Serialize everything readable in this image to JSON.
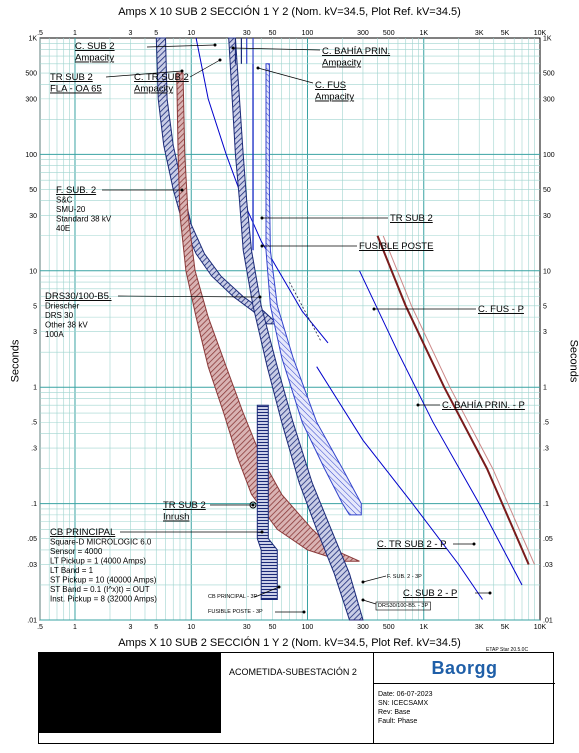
{
  "chart_data": {
    "type": "line",
    "title": "Amps  X  10   SUB 2 SECCIÓN 1 Y 2 (Nom. kV=34.5, Plot Ref. kV=34.5)",
    "xlabel": "",
    "ylabel": "Seconds",
    "xscale": "log",
    "yscale": "log",
    "xlim": [
      0.5,
      10000
    ],
    "ylim": [
      0.01,
      1000
    ],
    "grid": true,
    "x_ticks": [
      {
        "v": 0.5,
        "label": ".5"
      },
      {
        "v": 1,
        "label": "1"
      },
      {
        "v": 3,
        "label": "3"
      },
      {
        "v": 5,
        "label": "5"
      },
      {
        "v": 10,
        "label": "10"
      },
      {
        "v": 30,
        "label": "30"
      },
      {
        "v": 50,
        "label": "50"
      },
      {
        "v": 100,
        "label": "100"
      },
      {
        "v": 300,
        "label": "300"
      },
      {
        "v": 500,
        "label": "500"
      },
      {
        "v": 1000,
        "label": "1K"
      },
      {
        "v": 3000,
        "label": "3K"
      },
      {
        "v": 5000,
        "label": "5K"
      },
      {
        "v": 10000,
        "label": "10K"
      }
    ],
    "y_ticks": [
      {
        "v": 1000,
        "label": "1K"
      },
      {
        "v": 500,
        "label": "500"
      },
      {
        "v": 300,
        "label": "300"
      },
      {
        "v": 100,
        "label": "100"
      },
      {
        "v": 50,
        "label": "50"
      },
      {
        "v": 30,
        "label": "30"
      },
      {
        "v": 10,
        "label": "10"
      },
      {
        "v": 5,
        "label": "5"
      },
      {
        "v": 3,
        "label": "3"
      },
      {
        "v": 1,
        "label": "1"
      },
      {
        "v": 0.5,
        "label": ".5"
      },
      {
        "v": 0.3,
        "label": ".3"
      },
      {
        "v": 0.1,
        "label": ".1"
      },
      {
        "v": 0.05,
        "label": ".05"
      },
      {
        "v": 0.03,
        "label": ".03"
      },
      {
        "v": 0.01,
        "label": ".01"
      }
    ],
    "series": [
      {
        "name": "F. SUB. 2",
        "kind": "band",
        "color": "#1b2a78",
        "upper": [
          [
            6,
            1000
          ],
          [
            6.2,
            300
          ],
          [
            7,
            120
          ],
          [
            8.5,
            50
          ],
          [
            10,
            25
          ],
          [
            13,
            14
          ],
          [
            18,
            9
          ],
          [
            28,
            6
          ],
          [
            42,
            4.5
          ],
          [
            55,
            3.5
          ]
        ],
        "lower": [
          [
            5,
            1000
          ],
          [
            5.2,
            300
          ],
          [
            5.8,
            120
          ],
          [
            7,
            50
          ],
          [
            8.5,
            25
          ],
          [
            11,
            14
          ],
          [
            15,
            9
          ],
          [
            23,
            6
          ],
          [
            34,
            4.5
          ],
          [
            45,
            3.5
          ]
        ]
      },
      {
        "name": "DRS30/100-B5.",
        "kind": "band",
        "color": "#8b3a3a",
        "upper": [
          [
            8.5,
            500
          ],
          [
            8.8,
            100
          ],
          [
            9.4,
            30
          ],
          [
            10.8,
            10
          ],
          [
            14,
            4
          ],
          [
            20,
            1.5
          ],
          [
            28,
            0.6
          ],
          [
            40,
            0.25
          ],
          [
            60,
            0.12
          ],
          [
            110,
            0.06
          ],
          [
            170,
            0.04
          ],
          [
            280,
            0.032
          ]
        ],
        "lower": [
          [
            7.5,
            500
          ],
          [
            7.7,
            100
          ],
          [
            8,
            30
          ],
          [
            9,
            10
          ],
          [
            11,
            4
          ],
          [
            14,
            1.5
          ],
          [
            19,
            0.6
          ],
          [
            25,
            0.25
          ],
          [
            33,
            0.12
          ],
          [
            55,
            0.06
          ],
          [
            100,
            0.04
          ],
          [
            200,
            0.032
          ]
        ]
      },
      {
        "name": "TR SUB 2",
        "kind": "line",
        "color": "#0000cc",
        "points": [
          [
            11,
            1000
          ],
          [
            14,
            300
          ],
          [
            20,
            100
          ],
          [
            28,
            40
          ],
          [
            40,
            18
          ],
          [
            60,
            9
          ],
          [
            90,
            4.5
          ],
          [
            150,
            2.4
          ]
        ]
      },
      {
        "name": "C. SUB 2",
        "kind": "band",
        "color": "#1b2a78",
        "upper": [
          [
            24,
            1000
          ],
          [
            26,
            300
          ],
          [
            28,
            100
          ],
          [
            30,
            40
          ],
          [
            33,
            15
          ],
          [
            40,
            5
          ],
          [
            55,
            1.5
          ],
          [
            75,
            0.5
          ],
          [
            110,
            0.15
          ],
          [
            160,
            0.06
          ],
          [
            230,
            0.025
          ],
          [
            300,
            0.01
          ]
        ],
        "lower": [
          [
            21,
            1000
          ],
          [
            22.5,
            300
          ],
          [
            24,
            100
          ],
          [
            26,
            40
          ],
          [
            28,
            15
          ],
          [
            34,
            5
          ],
          [
            45,
            1.5
          ],
          [
            60,
            0.5
          ],
          [
            85,
            0.15
          ],
          [
            120,
            0.06
          ],
          [
            170,
            0.025
          ],
          [
            230,
            0.01
          ]
        ]
      },
      {
        "name": "FUSIBLE POSTE",
        "kind": "band",
        "color": "#3344cc",
        "upper": [
          [
            47,
            600
          ],
          [
            47,
            50
          ],
          [
            48,
            15
          ],
          [
            55,
            5
          ],
          [
            75,
            1.8
          ],
          [
            120,
            0.5
          ],
          [
            200,
            0.2
          ],
          [
            290,
            0.1
          ],
          [
            290,
            0.08
          ]
        ],
        "lower": [
          [
            44,
            600
          ],
          [
            44,
            50
          ],
          [
            44,
            15
          ],
          [
            48,
            5
          ],
          [
            60,
            1.8
          ],
          [
            90,
            0.5
          ],
          [
            140,
            0.2
          ],
          [
            200,
            0.1
          ],
          [
            230,
            0.08
          ]
        ]
      },
      {
        "name": "CB PRINCIPAL",
        "kind": "band",
        "color": "#1b2a78",
        "upper": [
          [
            46,
            0.7
          ],
          [
            46,
            0.2
          ],
          [
            46,
            0.05
          ],
          [
            55,
            0.04
          ],
          [
            55,
            0.015
          ]
        ],
        "lower": [
          [
            37,
            0.7
          ],
          [
            37,
            0.2
          ],
          [
            37,
            0.05
          ],
          [
            40,
            0.04
          ],
          [
            40,
            0.015
          ]
        ]
      },
      {
        "name": "C. FUS - P",
        "kind": "line",
        "color": "#7a1c1c",
        "points": [
          [
            400,
            20
          ],
          [
            700,
            5
          ],
          [
            1500,
            1
          ],
          [
            3500,
            0.2
          ],
          [
            8000,
            0.03
          ]
        ]
      },
      {
        "name": "C. BAHÍA PRIN. - P",
        "kind": "line",
        "color": "#0000cc",
        "points": [
          [
            280,
            10
          ],
          [
            600,
            2
          ],
          [
            1200,
            0.5
          ],
          [
            3000,
            0.1
          ],
          [
            7000,
            0.02
          ]
        ]
      },
      {
        "name": "C. TR SUB 2 - P",
        "kind": "line",
        "color": "#0000cc",
        "points": [
          [
            120,
            1.5
          ],
          [
            300,
            0.35
          ],
          [
            800,
            0.1
          ],
          [
            2000,
            0.03
          ],
          [
            3200,
            0.015
          ]
        ]
      }
    ],
    "annotations": [
      {
        "text": "C. SUB 2",
        "sub": "Ampacity"
      },
      {
        "text": "C. BAHÍA PRIN.",
        "sub": "Ampacity"
      },
      {
        "text": "TR SUB 2",
        "sub": "FLA - OA 65"
      },
      {
        "text": "C. TR SUB 2",
        "sub": "Ampacity"
      },
      {
        "text": "C. FUS",
        "sub": "Ampacity"
      },
      {
        "text": "F. SUB. 2",
        "detail": [
          "S&C",
          "SMU-20",
          "Standard  38 kV",
          "40E"
        ]
      },
      {
        "text": "TR SUB 2"
      },
      {
        "text": "FUSIBLE POSTE"
      },
      {
        "text": "DRS30/100-B5.",
        "detail": [
          "Driescher",
          "DRS 30",
          "Other  38 kV",
          "100A"
        ]
      },
      {
        "text": "C. FUS - P"
      },
      {
        "text": "C. BAHÍA PRIN. - P"
      },
      {
        "text": "TR SUB 2",
        "sub": "Inrush"
      },
      {
        "text": "CB PRINCIPAL",
        "detail": [
          "Square-D  MICROLOGIC 6.0",
          "Sensor = 4000",
          "LT Pickup = 1 (4000 Amps)",
          "LT Band = 1",
          "ST Pickup = 10 (40000 Amps)",
          "ST Band = 0.1  (I^x)t) = OUT",
          "Inst. Pickup = 8 (32000 Amps)"
        ]
      },
      {
        "text": "C. TR SUB 2 - P"
      },
      {
        "text": "C. SUB 2 - P"
      },
      {
        "text": "F. SUB. 2 - 3P"
      },
      {
        "text": "CB PRINCIPAL - 3P"
      },
      {
        "text": "FUSIBLE POSTE - 3P"
      },
      {
        "text": "DRS30/100-B5. - 3P"
      }
    ]
  },
  "footer": {
    "etap": "ETAP Star 20.5.0C",
    "project": "ACOMETIDA-SUBESTACIÓN 2",
    "logo": "Baorgg",
    "date": "Date:  06-07-2023",
    "sn": "SN:    ICECSAMX",
    "rev": "Rev:   Base",
    "fault": "Fault: Phase"
  }
}
